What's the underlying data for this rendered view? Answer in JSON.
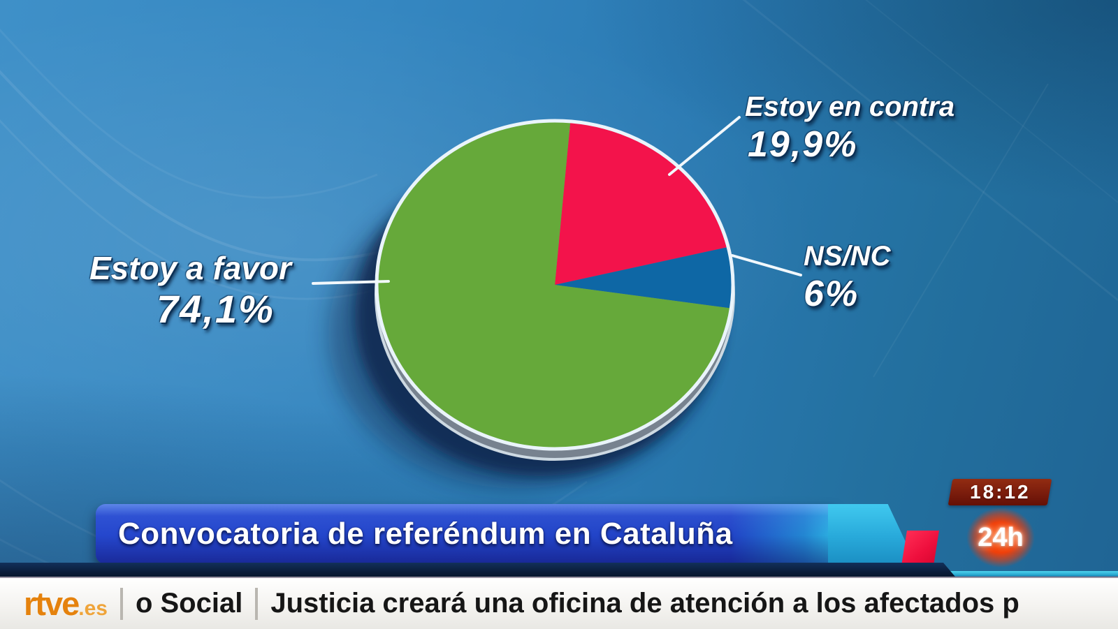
{
  "banner": {
    "headline": "Convocatoria de referéndum en Cataluña"
  },
  "channel": {
    "clock": "18:12",
    "logo": "24h"
  },
  "ticker": {
    "logo": "rtve",
    "logo_suffix": ".es",
    "category": "o Social",
    "headline": "Justicia creará una oficina de atención a los afectados p"
  },
  "chart_data": {
    "type": "pie",
    "title": "Convocatoria de referéndum en Cataluña",
    "start_angle_deg": 5,
    "direction": "clockwise",
    "legend_position": "callout-labels",
    "slices": [
      {
        "label": "Estoy en contra",
        "value": 19.9,
        "display": "19,9%",
        "color": "#f3134b"
      },
      {
        "label": "NS/NC",
        "value": 6,
        "display": "6%",
        "color": "#0e67a5"
      },
      {
        "label": "Estoy a favor",
        "value": 74.1,
        "display": "74,1%",
        "color": "#66a93a"
      }
    ]
  },
  "colors": {
    "background_blue": "#2b7bb4",
    "banner_blue": "#2143c6",
    "accent_cyan": "#2cb2e2",
    "accent_red": "#ee0f3d",
    "channel_orange": "#ef3f0a",
    "clock_maroon": "#7a1c0c",
    "ticker_orange": "#e5820d"
  }
}
